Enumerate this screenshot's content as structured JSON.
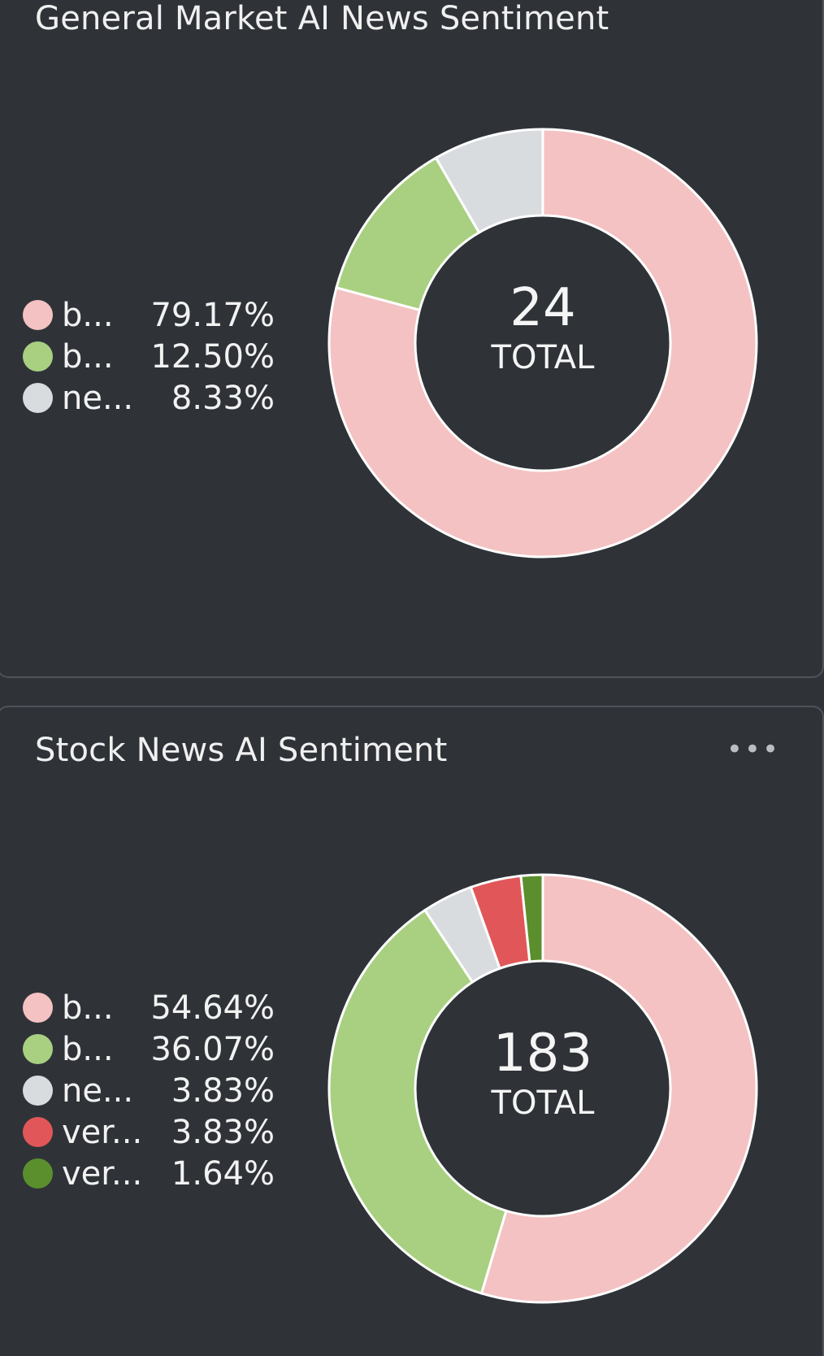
{
  "chart_data": [
    {
      "type": "pie",
      "title": "General Market AI News Sentiment",
      "total": "24",
      "total_label": "TOTAL",
      "series": [
        {
          "label": "b...",
          "percent": "79.17%",
          "value": 79.17,
          "color": "#f4c2c2"
        },
        {
          "label": "b...",
          "percent": "12.50%",
          "value": 12.5,
          "color": "#a8d080"
        },
        {
          "label": "ne...",
          "percent": "8.33%",
          "value": 8.33,
          "color": "#d9dcdf"
        }
      ]
    },
    {
      "type": "pie",
      "title": "Stock News AI Sentiment",
      "menu": "•••",
      "total": "183",
      "total_label": "TOTAL",
      "series": [
        {
          "label": "b...",
          "percent": "54.64%",
          "value": 54.64,
          "color": "#f4c2c2"
        },
        {
          "label": "b...",
          "percent": "36.07%",
          "value": 36.07,
          "color": "#a8d080"
        },
        {
          "label": "ne...",
          "percent": "3.83%",
          "value": 3.83,
          "color": "#d9dcdf"
        },
        {
          "label": "ver...",
          "percent": "3.83%",
          "value": 3.83,
          "color": "#e15759"
        },
        {
          "label": "ver...",
          "percent": "1.64%",
          "value": 1.64,
          "color": "#5b8f2e"
        }
      ]
    }
  ]
}
